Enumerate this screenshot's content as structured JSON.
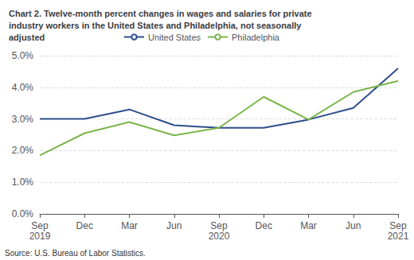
{
  "chart_data": {
    "type": "line",
    "title": "Chart 2. Twelve-month percent changes in wages and salaries for private\nindustry workers in the United States and Philadelphia, not seasonally\nadjusted",
    "annotations": [
      "Source: U.S. Bureau of Labor Statistics."
    ],
    "categories": [
      "Sep\n2019",
      "Dec",
      "Mar",
      "Jun",
      "Sep\n2020",
      "Dec",
      "Mar",
      "Jun",
      "Sep\n2021"
    ],
    "series": [
      {
        "name": "United States",
        "color": "#2e4e8a",
        "values": [
          3.0,
          3.0,
          3.3,
          2.8,
          2.72,
          2.72,
          2.98,
          3.35,
          4.6
        ]
      },
      {
        "name": "Philadelphia",
        "color": "#7ab648",
        "values": [
          1.85,
          2.55,
          2.9,
          2.48,
          2.72,
          3.7,
          2.98,
          3.85,
          4.2
        ]
      }
    ],
    "ylim": [
      0.0,
      5.0
    ],
    "yticks": [
      {
        "value": 0.0,
        "label": "0.0%"
      },
      {
        "value": 1.0,
        "label": "1.0%"
      },
      {
        "value": 2.0,
        "label": "2.0%"
      },
      {
        "value": 3.0,
        "label": "3.0%"
      },
      {
        "value": 4.0,
        "label": "4.0%"
      },
      {
        "value": 5.0,
        "label": "5.0%"
      }
    ],
    "grid": true,
    "legend": "top"
  }
}
